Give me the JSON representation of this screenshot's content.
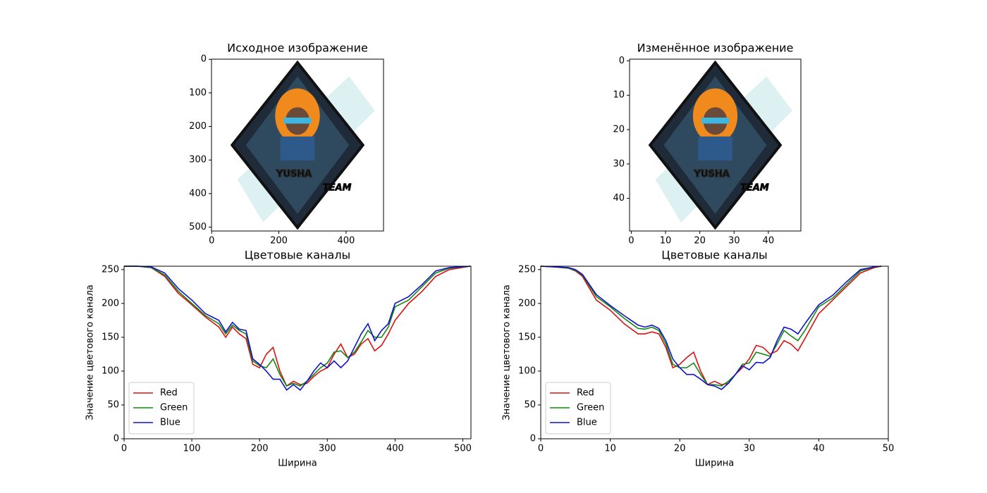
{
  "chart_data": [
    {
      "type": "image",
      "title": "Исходное изображение",
      "image_text": [
        "YUSHA",
        "TEAM"
      ],
      "xlim": [
        -0.5,
        511.5
      ],
      "ylim": [
        511.5,
        -0.5
      ],
      "xticks": [
        0,
        200,
        400
      ],
      "yticks": [
        0,
        100,
        200,
        300,
        400,
        500
      ]
    },
    {
      "type": "image",
      "title": "Изменённое изображение",
      "image_text": [
        "YUSHA",
        "TEAM"
      ],
      "xlim": [
        -0.5,
        49.5
      ],
      "ylim": [
        49.5,
        -0.5
      ],
      "xticks": [
        0,
        10,
        20,
        30,
        40
      ],
      "yticks": [
        0,
        10,
        20,
        30,
        40
      ]
    },
    {
      "type": "line",
      "title": "Цветовые каналы",
      "xlabel": "Ширина",
      "ylabel": "Значение цветового канала",
      "xlim": [
        0,
        512
      ],
      "ylim": [
        0,
        255
      ],
      "xticks": [
        0,
        100,
        200,
        300,
        400,
        500
      ],
      "yticks": [
        0,
        50,
        100,
        150,
        200,
        250
      ],
      "legend": "lower left",
      "x": [
        0,
        20,
        40,
        60,
        80,
        100,
        120,
        140,
        150,
        160,
        170,
        180,
        190,
        200,
        210,
        220,
        230,
        240,
        250,
        260,
        270,
        280,
        290,
        300,
        310,
        320,
        330,
        340,
        350,
        360,
        370,
        380,
        390,
        400,
        420,
        440,
        460,
        480,
        511
      ],
      "series": [
        {
          "name": "Red",
          "color": "#dd1111",
          "values": [
            255,
            255,
            253,
            240,
            215,
            198,
            180,
            165,
            150,
            165,
            155,
            148,
            110,
            105,
            125,
            135,
            100,
            78,
            85,
            80,
            82,
            92,
            100,
            105,
            125,
            140,
            120,
            125,
            140,
            148,
            130,
            138,
            155,
            175,
            200,
            218,
            240,
            250,
            255
          ]
        },
        {
          "name": "Green",
          "color": "#118811",
          "values": [
            255,
            255,
            253,
            242,
            218,
            200,
            182,
            170,
            155,
            168,
            160,
            155,
            115,
            108,
            105,
            118,
            95,
            78,
            82,
            78,
            85,
            95,
            105,
            112,
            128,
            130,
            120,
            128,
            143,
            160,
            150,
            150,
            165,
            195,
            205,
            225,
            245,
            252,
            255
          ]
        },
        {
          "name": "Blue",
          "color": "#1111cc",
          "values": [
            255,
            255,
            254,
            245,
            222,
            205,
            185,
            175,
            158,
            172,
            162,
            160,
            118,
            110,
            100,
            88,
            88,
            72,
            80,
            72,
            85,
            100,
            112,
            105,
            115,
            105,
            115,
            135,
            155,
            170,
            145,
            160,
            170,
            200,
            210,
            228,
            248,
            253,
            255
          ]
        }
      ]
    },
    {
      "type": "line",
      "title": "Цветовые каналы",
      "xlabel": "Ширина",
      "ylabel": "Значение цветового канала",
      "xlim": [
        0,
        50
      ],
      "ylim": [
        0,
        255
      ],
      "xticks": [
        0,
        10,
        20,
        30,
        40,
        50
      ],
      "yticks": [
        0,
        50,
        100,
        150,
        200,
        250
      ],
      "legend": "lower left",
      "x": [
        0,
        2,
        4,
        5,
        6,
        8,
        10,
        12,
        14,
        15,
        16,
        17,
        18,
        19,
        20,
        21,
        22,
        23,
        24,
        25,
        26,
        27,
        28,
        29,
        30,
        31,
        32,
        33,
        34,
        35,
        36,
        37,
        38,
        40,
        42,
        44,
        46,
        48,
        49
      ],
      "series": [
        {
          "name": "Red",
          "color": "#dd1111",
          "values": [
            255,
            254,
            252,
            248,
            240,
            205,
            190,
            170,
            155,
            155,
            158,
            155,
            135,
            105,
            110,
            120,
            128,
            100,
            80,
            85,
            80,
            82,
            95,
            105,
            118,
            138,
            135,
            125,
            130,
            145,
            140,
            130,
            148,
            185,
            205,
            225,
            245,
            253,
            255
          ]
        },
        {
          "name": "Green",
          "color": "#118811",
          "values": [
            255,
            254,
            252,
            249,
            242,
            210,
            195,
            178,
            163,
            162,
            165,
            160,
            140,
            110,
            105,
            105,
            112,
            95,
            80,
            80,
            78,
            85,
            95,
            110,
            112,
            128,
            125,
            122,
            140,
            160,
            152,
            145,
            160,
            195,
            208,
            228,
            248,
            254,
            255
          ]
        },
        {
          "name": "Blue",
          "color": "#1111cc",
          "values": [
            255,
            254,
            253,
            250,
            243,
            213,
            197,
            182,
            168,
            165,
            168,
            163,
            145,
            118,
            105,
            95,
            95,
            88,
            80,
            78,
            73,
            82,
            95,
            108,
            102,
            113,
            112,
            120,
            145,
            165,
            162,
            155,
            170,
            198,
            212,
            232,
            250,
            254,
            255
          ]
        }
      ]
    }
  ]
}
